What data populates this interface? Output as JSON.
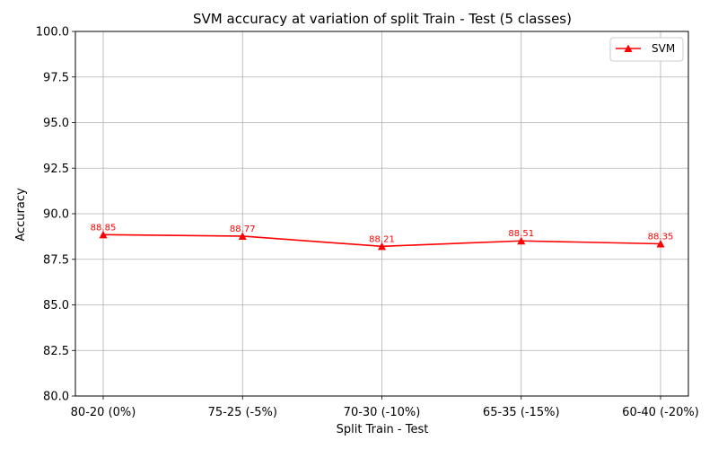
{
  "chart_data": {
    "type": "line",
    "title": "SVM accuracy at variation of split Train - Test (5 classes)",
    "xlabel": "Split Train - Test",
    "ylabel": "Accuracy",
    "categories": [
      "80-20 (0%)",
      "75-25 (-5%)",
      "70-30 (-10%)",
      "65-35 (-15%)",
      "60-40 (-20%)"
    ],
    "series": [
      {
        "name": "SVM",
        "color": "#ff0000",
        "marker": "triangle-up",
        "values": [
          88.85,
          88.77,
          88.21,
          88.51,
          88.35
        ],
        "data_labels": [
          "88.85",
          "88.77",
          "88.21",
          "88.51",
          "88.35"
        ]
      }
    ],
    "ylim": [
      80,
      100
    ],
    "yticks": [
      80.0,
      82.5,
      85.0,
      87.5,
      90.0,
      92.5,
      95.0,
      97.5,
      100.0
    ],
    "ytick_labels": [
      "80.0",
      "82.5",
      "85.0",
      "87.5",
      "90.0",
      "92.5",
      "95.0",
      "97.5",
      "100.0"
    ],
    "grid": true,
    "legend_position": "top-right"
  }
}
